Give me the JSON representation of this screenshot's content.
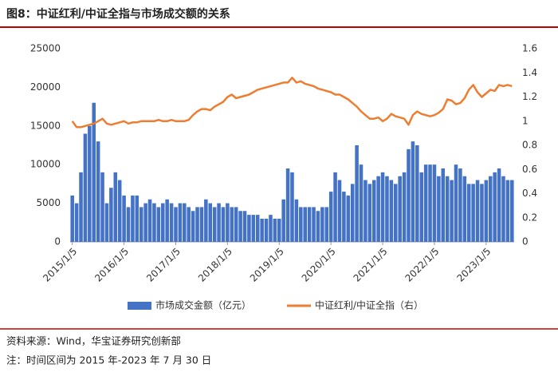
{
  "chart_data": {
    "type": "bar",
    "title": "图8：中证红利/中证全指与市场成交额的关系",
    "source": "资料来源：Wind，华宝证券研究创新部",
    "note": "注：时间区间为 2015 年-2023 年 7 月 30 日",
    "categories": [
      "2015/1/5",
      null,
      null,
      null,
      null,
      null,
      null,
      null,
      null,
      null,
      null,
      null,
      "2016/1/5",
      null,
      null,
      null,
      null,
      null,
      null,
      null,
      null,
      null,
      null,
      null,
      "2017/1/5",
      null,
      null,
      null,
      null,
      null,
      null,
      null,
      null,
      null,
      null,
      null,
      "2018/1/5",
      null,
      null,
      null,
      null,
      null,
      null,
      null,
      null,
      null,
      null,
      null,
      "2019/1/5",
      null,
      null,
      null,
      null,
      null,
      null,
      null,
      null,
      null,
      null,
      null,
      "2020/1/5",
      null,
      null,
      null,
      null,
      null,
      null,
      null,
      null,
      null,
      null,
      null,
      "2021/1/5",
      null,
      null,
      null,
      null,
      null,
      null,
      null,
      null,
      null,
      null,
      null,
      "2022/1/5",
      null,
      null,
      null,
      null,
      null,
      null,
      null,
      null,
      null,
      null,
      null,
      "2023/1/5",
      null,
      null,
      null,
      null,
      null,
      null
    ],
    "series": [
      {
        "name": "市场成交金额（亿元）",
        "type": "bar",
        "color": "#4472c4",
        "values": [
          6000,
          5000,
          9000,
          14000,
          15000,
          18000,
          13000,
          9000,
          5000,
          7000,
          9000,
          8000,
          6000,
          4500,
          6000,
          6000,
          4500,
          5000,
          5500,
          5000,
          4500,
          5000,
          5500,
          5000,
          4500,
          5000,
          5000,
          4500,
          4000,
          4500,
          4500,
          5500,
          5000,
          4500,
          5000,
          4500,
          5000,
          4500,
          4500,
          4000,
          4000,
          3500,
          3500,
          3500,
          3000,
          3000,
          3500,
          3000,
          3000,
          5500,
          9500,
          9000,
          5500,
          4500,
          4500,
          4500,
          4500,
          4000,
          4500,
          4500,
          6500,
          9000,
          8000,
          6500,
          6000,
          7500,
          12500,
          10000,
          8000,
          7500,
          8000,
          8500,
          9000,
          8500,
          8000,
          7500,
          8500,
          9000,
          12000,
          13000,
          12500,
          9000,
          10000,
          10000,
          10000,
          8500,
          9500,
          8500,
          8000,
          10000,
          9500,
          8500,
          7500,
          7500,
          8000,
          7500,
          8000,
          8500,
          9000,
          9500,
          8500,
          8000,
          8000
        ]
      },
      {
        "name": "中证红利/中证全指（右）",
        "type": "line",
        "axis": "y2",
        "color": "#ed7d31",
        "values": [
          1.0,
          0.95,
          0.95,
          0.96,
          0.97,
          0.98,
          1.0,
          1.02,
          0.98,
          0.97,
          0.98,
          0.99,
          1.0,
          0.98,
          0.99,
          0.99,
          1.0,
          1.0,
          1.0,
          1.0,
          1.01,
          1.0,
          1.0,
          1.01,
          1.0,
          1.0,
          1.0,
          1.01,
          1.05,
          1.08,
          1.1,
          1.1,
          1.09,
          1.12,
          1.14,
          1.16,
          1.2,
          1.22,
          1.19,
          1.2,
          1.21,
          1.22,
          1.24,
          1.26,
          1.27,
          1.28,
          1.29,
          1.3,
          1.31,
          1.32,
          1.32,
          1.36,
          1.32,
          1.33,
          1.31,
          1.3,
          1.29,
          1.27,
          1.26,
          1.25,
          1.24,
          1.22,
          1.22,
          1.2,
          1.18,
          1.15,
          1.12,
          1.08,
          1.05,
          1.02,
          1.02,
          1.03,
          1.0,
          1.02,
          1.06,
          1.04,
          1.03,
          1.02,
          0.97,
          1.05,
          1.08,
          1.06,
          1.05,
          1.04,
          1.05,
          1.07,
          1.1,
          1.18,
          1.17,
          1.14,
          1.15,
          1.19,
          1.26,
          1.3,
          1.24,
          1.2,
          1.23,
          1.26,
          1.25,
          1.3,
          1.29,
          1.3,
          1.29
        ]
      }
    ],
    "ylim": [
      0,
      25000
    ],
    "yticks": [
      0,
      5000,
      10000,
      15000,
      20000,
      25000
    ],
    "y2lim": [
      0,
      1.6
    ],
    "y2ticks": [
      0,
      0.2,
      0.4,
      0.6,
      0.8,
      1,
      1.2,
      1.4,
      1.6
    ],
    "legend": "bottom"
  }
}
